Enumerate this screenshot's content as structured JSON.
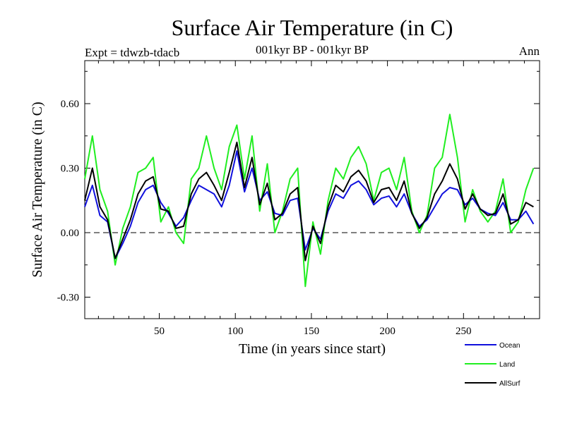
{
  "chart_data": {
    "type": "line",
    "title": "Surface Air Temperature (in C)",
    "subtitle": "001kyr BP - 001kyr BP",
    "experiment": "Expt = tdwzb-tdacb",
    "season": "Ann",
    "xlabel": "Time (in years since start)",
    "ylabel": "Surface Air Temperature (in C)",
    "xlim": [
      1,
      300
    ],
    "ylim": [
      -0.4,
      0.8
    ],
    "x_ticks": [
      50,
      100,
      150,
      200,
      250
    ],
    "x_tick_labels": [
      "50",
      "100",
      "150",
      "200",
      "250"
    ],
    "y_ticks": [
      -0.3,
      0.0,
      0.3,
      0.6
    ],
    "y_tick_labels": [
      "-0.30",
      "0.00",
      "0.30",
      "0.60"
    ],
    "reference_line": 0.0,
    "legend_position": "bottom-right",
    "series": [
      {
        "name": "Ocean",
        "color": "#1010dd",
        "x_start": 1,
        "x_step": 5,
        "values": [
          0.12,
          0.22,
          0.08,
          0.05,
          -0.12,
          -0.05,
          0.03,
          0.14,
          0.2,
          0.22,
          0.14,
          0.09,
          0.03,
          0.07,
          0.15,
          0.22,
          0.2,
          0.18,
          0.12,
          0.22,
          0.38,
          0.19,
          0.3,
          0.15,
          0.19,
          0.09,
          0.08,
          0.15,
          0.16,
          -0.08,
          0.02,
          -0.03,
          0.1,
          0.18,
          0.16,
          0.22,
          0.24,
          0.2,
          0.13,
          0.16,
          0.17,
          0.12,
          0.18,
          0.09,
          0.03,
          0.06,
          0.12,
          0.18,
          0.21,
          0.2,
          0.13,
          0.16,
          0.11,
          0.09,
          0.08,
          0.14,
          0.06,
          0.06,
          0.1,
          0.04
        ]
      },
      {
        "name": "Land",
        "color": "#20ee20",
        "x_start": 1,
        "x_step": 5,
        "values": [
          0.25,
          0.45,
          0.2,
          0.1,
          -0.15,
          0.02,
          0.12,
          0.28,
          0.3,
          0.35,
          0.05,
          0.12,
          0.0,
          -0.05,
          0.25,
          0.3,
          0.45,
          0.3,
          0.2,
          0.4,
          0.5,
          0.25,
          0.45,
          0.1,
          0.32,
          0.0,
          0.1,
          0.25,
          0.3,
          -0.25,
          0.05,
          -0.1,
          0.15,
          0.3,
          0.25,
          0.35,
          0.4,
          0.32,
          0.15,
          0.28,
          0.3,
          0.2,
          0.35,
          0.1,
          0.0,
          0.08,
          0.3,
          0.35,
          0.55,
          0.35,
          0.05,
          0.2,
          0.1,
          0.05,
          0.1,
          0.25,
          0.0,
          0.05,
          0.2,
          0.3
        ]
      },
      {
        "name": "AllSurf",
        "color": "#000000",
        "x_start": 1,
        "x_step": 5,
        "values": [
          0.15,
          0.3,
          0.12,
          0.06,
          -0.12,
          -0.03,
          0.06,
          0.18,
          0.24,
          0.26,
          0.11,
          0.1,
          0.02,
          0.03,
          0.18,
          0.25,
          0.28,
          0.22,
          0.15,
          0.28,
          0.42,
          0.21,
          0.35,
          0.13,
          0.23,
          0.06,
          0.09,
          0.18,
          0.21,
          -0.13,
          0.03,
          -0.05,
          0.12,
          0.22,
          0.19,
          0.26,
          0.29,
          0.24,
          0.14,
          0.2,
          0.21,
          0.15,
          0.24,
          0.09,
          0.02,
          0.07,
          0.18,
          0.24,
          0.32,
          0.25,
          0.11,
          0.18,
          0.11,
          0.08,
          0.09,
          0.18,
          0.04,
          0.06,
          0.14,
          0.12
        ]
      }
    ]
  }
}
